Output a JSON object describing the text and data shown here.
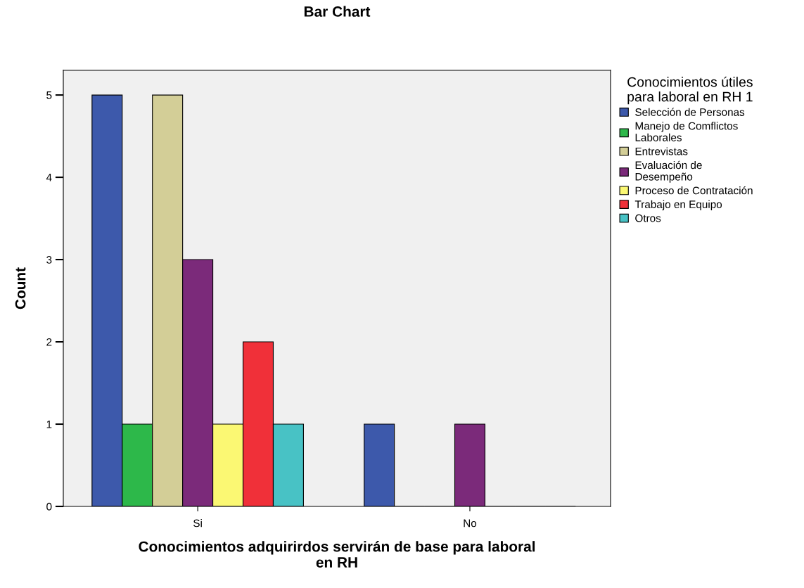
{
  "chart_data": {
    "type": "bar",
    "title": "Bar Chart",
    "xlabel": "Conocimientos adquirirdos servirán de base para laboral\nen RH",
    "ylabel": "Count",
    "categories": [
      "Si",
      "No"
    ],
    "series": [
      {
        "name": "Selección de Personas",
        "color": "#3d59ab",
        "values": [
          5,
          1
        ]
      },
      {
        "name": "Manejo de Comflictos\nLaborales",
        "color": "#2db84a",
        "values": [
          1,
          0
        ]
      },
      {
        "name": "Entrevistas",
        "color": "#d3ce97",
        "values": [
          5,
          0
        ]
      },
      {
        "name": "Evaluación de\nDesempeño",
        "color": "#7b2a7a",
        "values": [
          3,
          1
        ]
      },
      {
        "name": "Proceso de Contratación",
        "color": "#fbf873",
        "values": [
          1,
          0
        ]
      },
      {
        "name": "Trabajo en Equipo",
        "color": "#f03039",
        "values": [
          2,
          0
        ]
      },
      {
        "name": "Otros",
        "color": "#48c2c5",
        "values": [
          1,
          0
        ]
      }
    ],
    "legend_title": "Conocimientos útiles\npara laboral en RH 1",
    "legend": "right",
    "ylim": [
      0,
      5.3
    ],
    "yticks": [
      0,
      1,
      2,
      3,
      4,
      5
    ],
    "grid": false
  }
}
